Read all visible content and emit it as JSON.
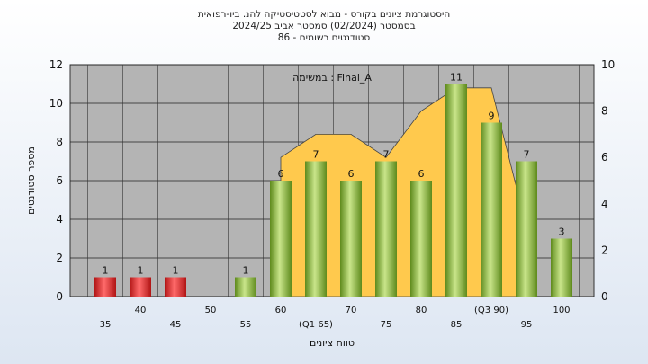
{
  "titles": {
    "line1": "היסטוגרמת ציונים בקורס - מבוא לסטטיסטיקה להנ. ביו-רפואית",
    "line2": "בסמסטר  (02/2024)  סמסטר אביב 2024/25",
    "line3": "סטודנטים רשומים - 86"
  },
  "chart_data": {
    "type": "bar",
    "title": "היסטוגרמת ציונים בקורס - מבוא לסטטיסטיקה להנ. ביו-רפואית",
    "annotation": "במשימה : Final_A",
    "xlabel": "טווח ציונים",
    "ylabel": "מספר סטודנטים",
    "ylim": [
      0,
      12
    ],
    "y2lim": [
      0,
      10
    ],
    "yticks": [
      0,
      2,
      4,
      6,
      8,
      10,
      12
    ],
    "y2ticks": [
      0,
      2,
      4,
      6,
      8,
      10
    ],
    "categories": [
      "35",
      "40",
      "45",
      "50",
      "55",
      "60",
      "65",
      "70",
      "75",
      "80",
      "85",
      "90",
      "95",
      "100"
    ],
    "tick_labels": [
      "35",
      "40",
      "45",
      "50",
      "55",
      "60",
      "(Q1 65)",
      "70",
      "75",
      "80",
      "85",
      "(Q3 90)",
      "95",
      "100"
    ],
    "values": [
      1,
      1,
      1,
      0,
      1,
      6,
      7,
      6,
      7,
      6,
      11,
      9,
      7,
      3
    ],
    "bar_labels": [
      "1",
      "1",
      "1",
      "",
      "1",
      "6",
      "7",
      "6",
      "7",
      "6",
      "11",
      "9",
      "7",
      "3"
    ],
    "colors": {
      "fail": "#dd2a2a",
      "pass": "#8fbd3a",
      "area": "#ffc94d",
      "plot_bg": "#b4b4b4"
    },
    "area_overlay": {
      "x": [
        60,
        65,
        70,
        75,
        80,
        85,
        90,
        95
      ],
      "values": [
        6,
        7,
        7,
        6,
        8,
        9,
        9,
        3
      ]
    },
    "grid": true
  }
}
